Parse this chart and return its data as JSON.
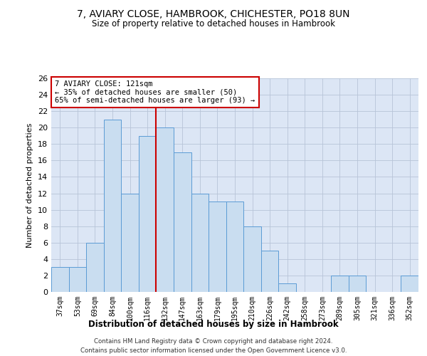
{
  "title1": "7, AVIARY CLOSE, HAMBROOK, CHICHESTER, PO18 8UN",
  "title2": "Size of property relative to detached houses in Hambrook",
  "xlabel": "Distribution of detached houses by size in Hambrook",
  "ylabel": "Number of detached properties",
  "categories": [
    "37sqm",
    "53sqm",
    "69sqm",
    "84sqm",
    "100sqm",
    "116sqm",
    "132sqm",
    "147sqm",
    "163sqm",
    "179sqm",
    "195sqm",
    "210sqm",
    "226sqm",
    "242sqm",
    "258sqm",
    "273sqm",
    "289sqm",
    "305sqm",
    "321sqm",
    "336sqm",
    "352sqm"
  ],
  "values": [
    3,
    3,
    6,
    21,
    12,
    19,
    20,
    17,
    12,
    11,
    11,
    8,
    5,
    1,
    0,
    0,
    2,
    2,
    0,
    0,
    2
  ],
  "bar_color": "#c9ddf0",
  "bar_edge_color": "#5b9bd5",
  "grid_color": "#b8c4d8",
  "annotation_text_line1": "7 AVIARY CLOSE: 121sqm",
  "annotation_text_line2": "← 35% of detached houses are smaller (50)",
  "annotation_text_line3": "65% of semi-detached houses are larger (93) →",
  "annotation_box_color": "#ffffff",
  "annotation_box_edge_color": "#cc0000",
  "vline_color": "#cc0000",
  "vline_x": 5.5,
  "ylim": [
    0,
    26
  ],
  "yticks": [
    0,
    2,
    4,
    6,
    8,
    10,
    12,
    14,
    16,
    18,
    20,
    22,
    24,
    26
  ],
  "footer1": "Contains HM Land Registry data © Crown copyright and database right 2024.",
  "footer2": "Contains public sector information licensed under the Open Government Licence v3.0.",
  "background_color": "#dce6f5",
  "fig_background": "#ffffff"
}
